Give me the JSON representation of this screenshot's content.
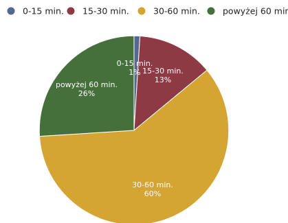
{
  "chart_data": {
    "type": "pie",
    "title": "",
    "series": [
      {
        "name": "",
        "labels": [
          "0-15 min.",
          "15-30 min.",
          "30-60 min.",
          "powyżej 60 min."
        ],
        "values": [
          1,
          13,
          60,
          26
        ],
        "value_labels": [
          "1%",
          "13%",
          "60%",
          "26%"
        ],
        "colors": [
          "#55688f",
          "#8e3a45",
          "#d5a534",
          "#46703b"
        ]
      }
    ],
    "legend": {
      "position": "top",
      "marker": "circle"
    },
    "data_labels": {
      "position": "inside",
      "content": "label and percent",
      "color": "#ffffff"
    },
    "start_angle": "12 o'clock",
    "direction": "clockwise"
  }
}
